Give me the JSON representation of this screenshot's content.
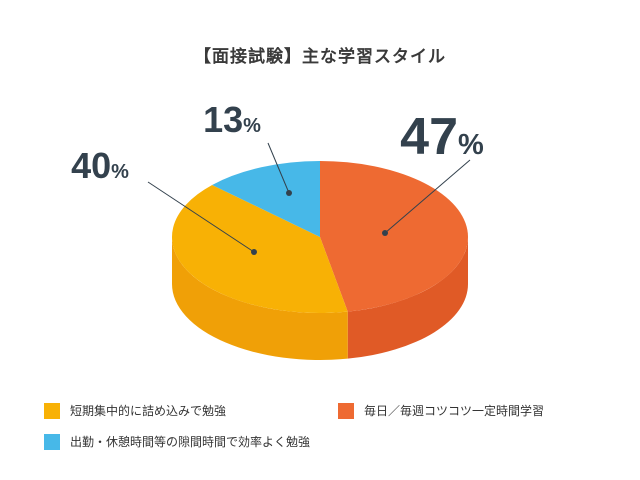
{
  "title": "【面接試験】主な学習スタイル",
  "chart_data": {
    "type": "pie",
    "title": "【面接試験】主な学習スタイル",
    "slices": [
      {
        "label": "毎日／毎週コツコツ一定時間学習",
        "value": 47,
        "display": "47",
        "unit": "%",
        "color": "#ee6a32",
        "side_color": "#e05a26"
      },
      {
        "label": "短期集中的に詰め込みで勉強",
        "value": 40,
        "display": "40",
        "unit": "%",
        "color": "#f8b105",
        "side_color": "#f0a007"
      },
      {
        "label": "出勤・休憩時間等の隙間時間で効率よく勉強",
        "value": 13,
        "display": "13",
        "unit": "%",
        "color": "#47b8e8",
        "side_color": "#3aa6d6"
      }
    ],
    "legend_position": "bottom"
  },
  "legend": [
    {
      "label": "短期集中的に詰め込みで勉強",
      "color": "#f8b105"
    },
    {
      "label": "毎日／毎週コツコツ一定時間学習",
      "color": "#ee6a32"
    },
    {
      "label": "出勤・休憩時間等の隙間時間で効率よく勉強",
      "color": "#47b8e8"
    }
  ]
}
